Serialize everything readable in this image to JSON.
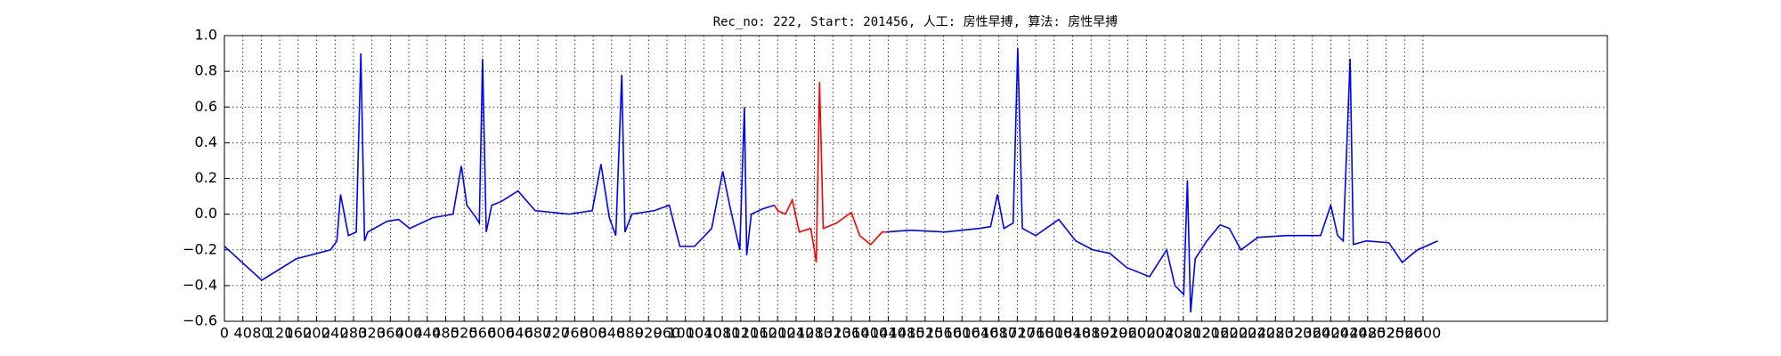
{
  "chart_data": {
    "type": "line",
    "title": "Rec_no: 222, Start: 201456, 人工: 房性早搏, 算法: 房性早搏",
    "x": [
      0,
      81,
      156,
      230,
      244,
      252,
      269,
      286,
      296,
      304,
      311,
      353,
      378,
      402,
      452,
      496,
      514,
      526,
      546,
      553,
      560,
      568,
      580,
      600,
      637,
      674,
      748,
      798,
      817,
      835,
      849,
      862,
      869,
      884,
      933,
      965,
      988,
      1020,
      1057,
      1081,
      1096,
      1118,
      1128,
      1133,
      1143,
      1168,
      1193,
      1200,
      1217,
      1232,
      1247,
      1272,
      1284,
      1291,
      1299,
      1328,
      1360,
      1378,
      1402,
      1427,
      1435,
      1489,
      1563,
      1637,
      1662,
      1677,
      1691,
      1711,
      1721,
      1731,
      1760,
      1810,
      1847,
      1884,
      1921,
      1958,
      2007,
      2044,
      2062,
      2081,
      2089,
      2096,
      2106,
      2131,
      2160,
      2180,
      2205,
      2242,
      2304,
      2378,
      2400,
      2415,
      2427,
      2442,
      2449,
      2477,
      2526,
      2555,
      2588,
      2632
    ],
    "series": [
      {
        "color": "#0000ff",
        "values": [
          -0.18,
          -0.37,
          -0.25,
          -0.2,
          -0.15,
          0.11,
          -0.12,
          -0.1,
          0.9,
          -0.15,
          -0.1,
          -0.04,
          -0.03,
          -0.08,
          -0.02,
          0.0,
          0.27,
          0.05,
          -0.02,
          -0.05,
          0.87,
          -0.1,
          0.05,
          0.07,
          0.13,
          0.02,
          0.0,
          0.02,
          0.28,
          -0.02,
          -0.12,
          0.78,
          -0.1,
          0.0,
          0.02,
          0.05,
          -0.18,
          -0.18,
          -0.08,
          0.24,
          0.05,
          -0.2,
          0.6,
          -0.23,
          0.0,
          0.03,
          0.05,
          null,
          null,
          null,
          null,
          null,
          null,
          null,
          null,
          null,
          null,
          null,
          null,
          null,
          -0.1,
          -0.09,
          -0.1,
          -0.08,
          -0.07,
          0.11,
          -0.08,
          -0.05,
          0.93,
          -0.08,
          -0.12,
          -0.03,
          -0.15,
          -0.2,
          -0.22,
          -0.3,
          -0.35,
          -0.2,
          -0.4,
          -0.45,
          0.19,
          -0.55,
          -0.25,
          -0.15,
          -0.06,
          -0.08,
          -0.2,
          -0.13,
          -0.12,
          -0.12,
          0.05,
          -0.12,
          -0.15,
          0.87,
          -0.17,
          -0.15,
          -0.16,
          -0.27,
          -0.2,
          -0.15
        ]
      },
      {
        "color": "#ff0000",
        "values": [
          null,
          null,
          null,
          null,
          null,
          null,
          null,
          null,
          null,
          null,
          null,
          null,
          null,
          null,
          null,
          null,
          null,
          null,
          null,
          null,
          null,
          null,
          null,
          null,
          null,
          null,
          null,
          null,
          null,
          null,
          null,
          null,
          null,
          null,
          null,
          null,
          null,
          null,
          null,
          null,
          null,
          null,
          null,
          null,
          null,
          null,
          0.05,
          0.02,
          0.0,
          0.08,
          -0.1,
          -0.08,
          -0.27,
          0.74,
          -0.08,
          -0.05,
          0.01,
          -0.12,
          -0.17,
          -0.1,
          -0.1,
          null,
          null,
          null,
          null,
          null,
          null,
          null,
          null,
          null,
          null,
          null,
          null,
          null,
          null,
          null,
          null,
          null,
          null,
          null,
          null,
          null,
          null,
          null,
          null,
          null,
          null,
          null,
          null,
          null,
          null,
          null,
          null,
          null,
          null,
          null,
          null,
          null,
          null,
          null
        ]
      }
    ],
    "xlim": [
      0,
      3000
    ],
    "xticks": [
      0,
      40,
      80,
      120,
      160,
      200,
      240,
      280,
      320,
      360,
      400,
      440,
      480,
      520,
      560,
      600,
      640,
      680,
      720,
      760,
      800,
      840,
      880,
      920,
      960,
      1000,
      1040,
      1080,
      1120,
      1160,
      1200,
      1240,
      1280,
      1320,
      1360,
      1400,
      1440,
      1480,
      1520,
      1560,
      1600,
      1640,
      1680,
      1720,
      1760,
      1800,
      1840,
      1880,
      1920,
      1960,
      2000,
      2040,
      2080,
      2120,
      2160,
      2200,
      2240,
      2280,
      2320,
      2360,
      2400,
      2440,
      2480,
      2520,
      2560,
      2600
    ],
    "ylim": [
      -0.6,
      1.0
    ],
    "yticks": [
      {
        "value": -0.6,
        "label": "−0.6"
      },
      {
        "value": -0.4,
        "label": "−0.4"
      },
      {
        "value": -0.2,
        "label": "−0.2"
      },
      {
        "value": 0,
        "label": "0.0"
      },
      0.2,
      0.4,
      0.6,
      0.8,
      {
        "value": 1.0,
        "label": "1.0"
      }
    ],
    "grid": true
  }
}
